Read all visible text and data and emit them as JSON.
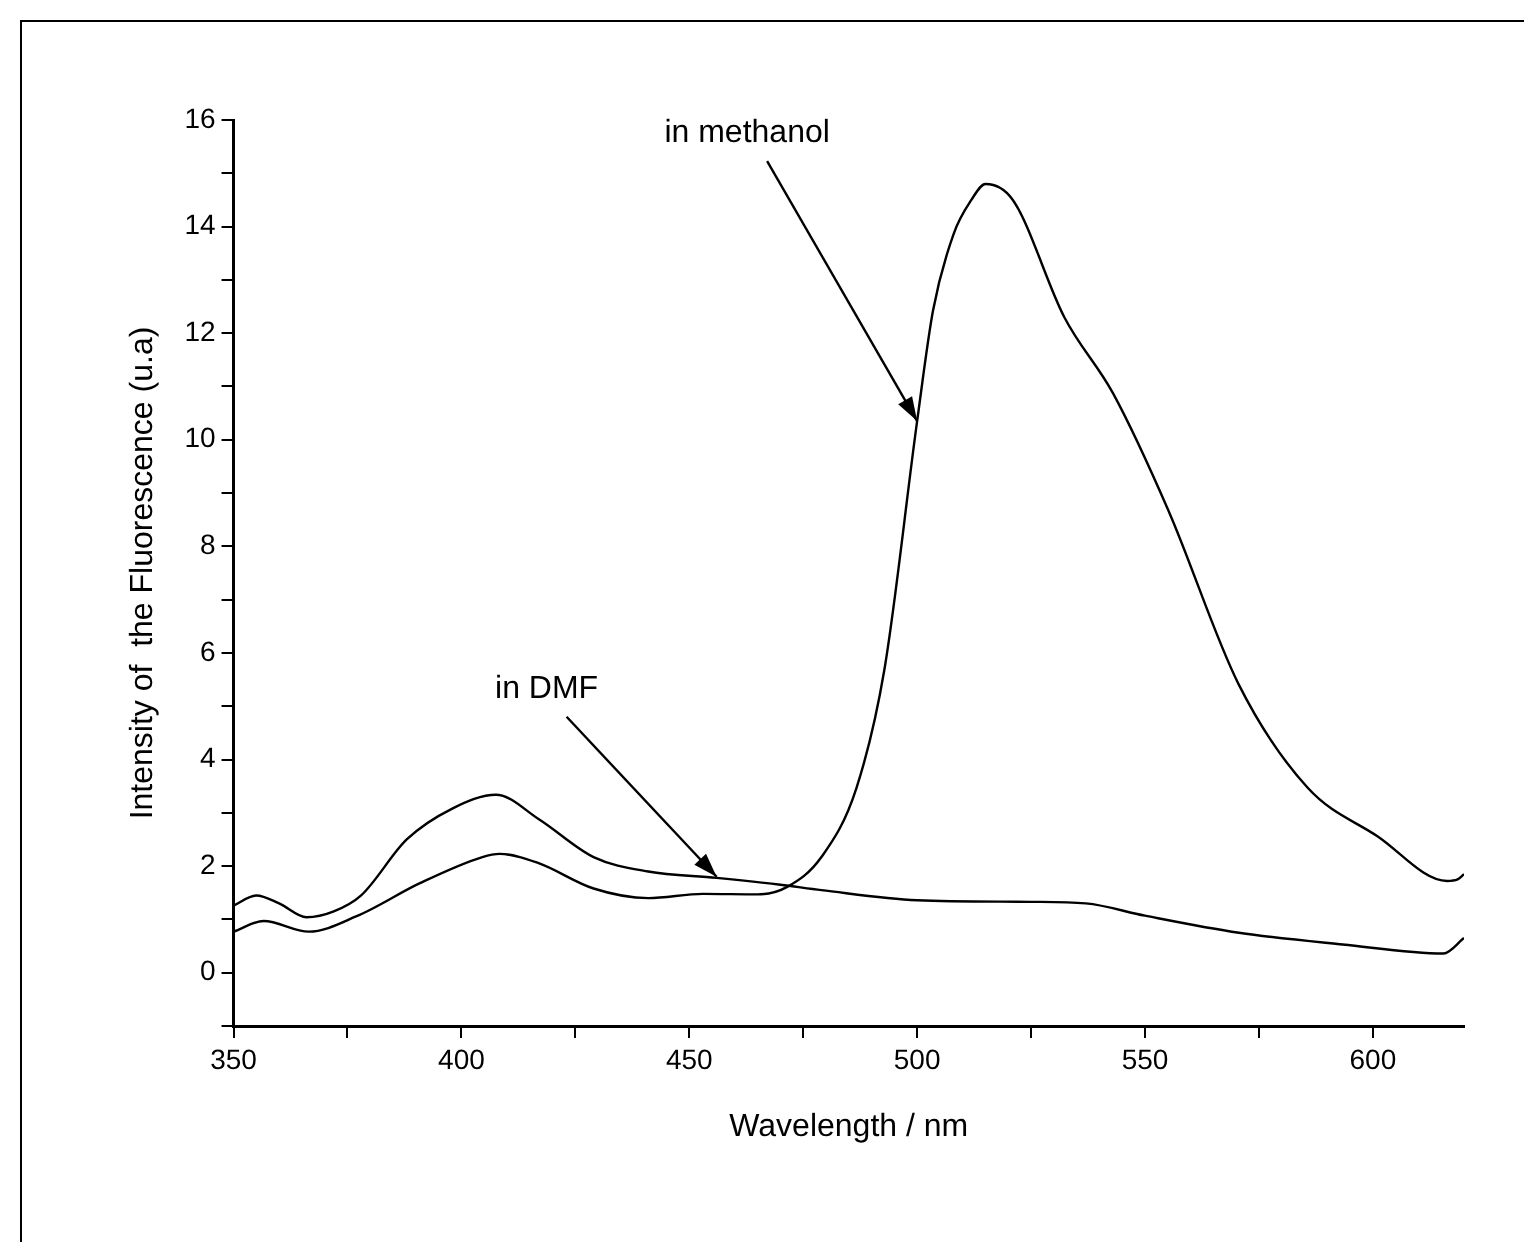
{
  "chart_data": {
    "type": "line",
    "xlabel": "Wavelength / nm",
    "ylabel": "Intensity of  the Fluorescence (u.a)",
    "xlim": [
      350,
      620
    ],
    "ylim": [
      -1,
      16
    ],
    "xticks": [
      350,
      {
        "value": 375,
        "label": null
      },
      400,
      {
        "value": 425,
        "label": null
      },
      450,
      {
        "value": 475,
        "label": null
      },
      500,
      {
        "value": 525,
        "label": null
      },
      550,
      {
        "value": 575,
        "label": null
      },
      600
    ],
    "yticks": [
      {
        "value": -1,
        "label": null
      },
      0,
      {
        "value": 1,
        "label": null
      },
      2,
      {
        "value": 3,
        "label": null
      },
      4,
      {
        "value": 5,
        "label": null
      },
      6,
      {
        "value": 7,
        "label": null
      },
      8,
      {
        "value": 9,
        "label": null
      },
      10,
      {
        "value": 11,
        "label": null
      },
      12,
      {
        "value": 13,
        "label": null
      },
      14,
      {
        "value": 15,
        "label": null
      },
      16
    ],
    "grid": false,
    "legend": false,
    "marker": "none",
    "line_style": "solid",
    "series": [
      {
        "color": "#000000",
        "x": [
          350,
          355,
          360,
          366,
          372,
          378,
          388,
          398,
          407.6,
          417,
          429,
          441,
          456,
          470,
          479,
          500,
          525,
          537,
          550,
          570.6,
          593.4,
          615.5,
          620
        ],
        "values": [
          1.26,
          1.45,
          1.3,
          1.04,
          1.15,
          1.45,
          2.5,
          3.08,
          3.34,
          2.88,
          2.17,
          1.9,
          1.78,
          1.65,
          1.55,
          1.36,
          1.33,
          1.3,
          1.07,
          0.75,
          0.53,
          0.36,
          0.65
        ]
      },
      {
        "color": "#000000",
        "x": [
          350,
          356.6,
          366.5,
          377,
          390.9,
          404.6,
          408.4,
          416.8,
          429,
          441,
          453,
          465,
          471.5,
          479,
          486.7,
          492.8,
          500,
          503.5,
          508,
          511.9,
          515,
          521,
          532.3,
          543,
          555.2,
          570.5,
          585.7,
          601,
          616.3,
          618.6,
          620
        ],
        "values": [
          0.77,
          0.97,
          0.77,
          1.06,
          1.68,
          2.17,
          2.23,
          2.06,
          1.58,
          1.4,
          1.48,
          1.47,
          1.61,
          2.17,
          3.47,
          5.68,
          10.35,
          12.43,
          13.86,
          14.5,
          14.8,
          14.5,
          12.3,
          10.87,
          8.66,
          5.42,
          3.47,
          2.56,
          1.72,
          1.75,
          1.85
        ]
      }
    ],
    "annotations": [
      {
        "text": "in DMF",
        "x": 456,
        "y": 1.8
      },
      {
        "text": "in methanol",
        "x": 500,
        "y": 10.35
      }
    ]
  }
}
